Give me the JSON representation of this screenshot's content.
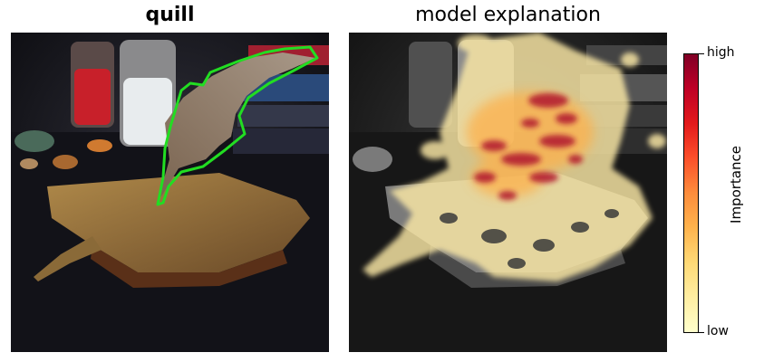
{
  "left_panel": {
    "title": "quill",
    "outline_color": "#22dd22"
  },
  "right_panel": {
    "title": "model explanation"
  },
  "colorbar": {
    "label": "Importance",
    "high_label": "high",
    "low_label": "low",
    "colormap": [
      "#ffffcc",
      "#ffeda0",
      "#fed976",
      "#feb24c",
      "#fd8d3c",
      "#fc4e2a",
      "#e31a1c",
      "#bd0026",
      "#800026"
    ]
  }
}
